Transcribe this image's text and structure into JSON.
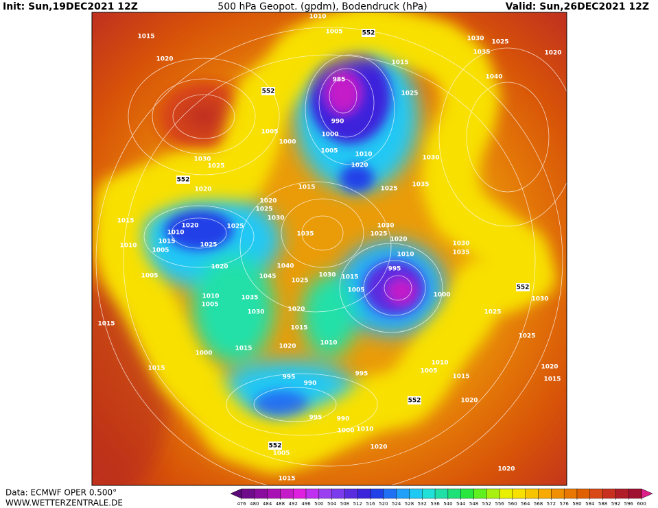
{
  "header": {
    "init": "Init: Sun,19DEC2021 12Z",
    "title": "500 hPa Geopot. (gpdm), Bodendruck (hPa)",
    "valid": "Valid: Sun,26DEC2021 12Z"
  },
  "footer": {
    "source": "Data: ECMWF OPER 0.500°",
    "site": "WWW.WETTERZENTRALE.DE"
  },
  "colorbar": {
    "ticks": [
      476,
      480,
      484,
      488,
      492,
      496,
      500,
      504,
      508,
      512,
      516,
      520,
      524,
      528,
      532,
      536,
      540,
      544,
      548,
      552,
      556,
      560,
      564,
      568,
      572,
      576,
      580,
      584,
      588,
      592,
      596,
      600
    ],
    "colors": [
      "#5a0a78",
      "#6e0c8c",
      "#8a0c9e",
      "#a812b4",
      "#c41cc8",
      "#e020e0",
      "#c030f0",
      "#9a40f0",
      "#7a3cec",
      "#5a2ce0",
      "#3c24dc",
      "#2040e8",
      "#2070f4",
      "#20a0f8",
      "#20c8f4",
      "#20e0d8",
      "#20e0a8",
      "#20e078",
      "#28e840",
      "#60f020",
      "#a8f010",
      "#e8f000",
      "#f8e000",
      "#f8c400",
      "#f8aa00",
      "#f09000",
      "#e87800",
      "#e06000",
      "#d84818",
      "#c83020",
      "#b01c28",
      "#a01030",
      "#e0208a"
    ]
  },
  "map": {
    "labels": [
      "1010",
      "1005",
      "552",
      "1015",
      "1020",
      "1030",
      "1025",
      "1035",
      "1020",
      "1040",
      "985",
      "552",
      "1015",
      "1025",
      "990",
      "1000",
      "1005",
      "1010",
      "1020",
      "1030",
      "1025",
      "1005",
      "1000",
      "552",
      "1020",
      "1015",
      "1025",
      "1035",
      "1030",
      "1020",
      "1030",
      "1025",
      "1015",
      "1020",
      "1025",
      "1010",
      "1015",
      "1025",
      "1010",
      "1005",
      "1035",
      "1030",
      "1025",
      "1020",
      "1030",
      "1035",
      "1010",
      "995",
      "1020",
      "1005",
      "1040",
      "1045",
      "1025",
      "1030",
      "1015",
      "1005",
      "1000",
      "552",
      "1030",
      "1010",
      "1005",
      "1035",
      "1030",
      "1020",
      "1025",
      "1015",
      "1015",
      "1010",
      "1025",
      "1000",
      "1015",
      "1020",
      "1015",
      "1010",
      "1005",
      "1020",
      "1015",
      "995",
      "990",
      "995",
      "1015",
      "552",
      "1020",
      "995",
      "990",
      "1000",
      "1010",
      "552",
      "1005",
      "1020",
      "1020",
      "1015"
    ]
  }
}
